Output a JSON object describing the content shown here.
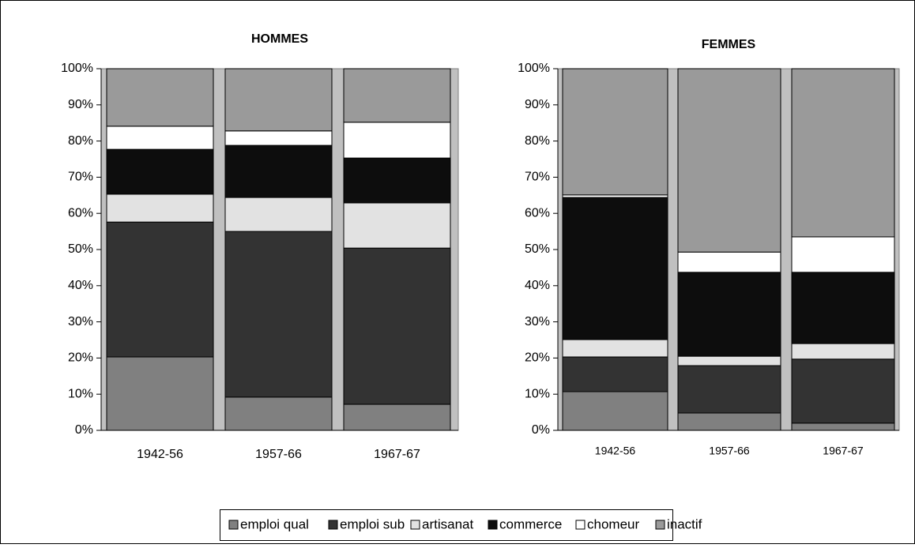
{
  "chart_data": [
    {
      "type": "stacked_bar",
      "title": "HOMMES",
      "categories": [
        "1942-56",
        "1957-66",
        "1967-67"
      ],
      "ylim": [
        0,
        100
      ],
      "yticks": [
        {
          "value": 0,
          "label": "0%"
        },
        {
          "value": 10,
          "label": "10%"
        },
        {
          "value": 20,
          "label": "20%"
        },
        {
          "value": 30,
          "label": "30%"
        },
        {
          "value": 40,
          "label": "40%"
        },
        {
          "value": 50,
          "label": "50%"
        },
        {
          "value": 60,
          "label": "60%"
        },
        {
          "value": 70,
          "label": "70%"
        },
        {
          "value": 80,
          "label": "80%"
        },
        {
          "value": 90,
          "label": "90%"
        },
        {
          "value": 100,
          "label": "100%"
        }
      ],
      "series": [
        {
          "name": "emploi qual",
          "color": "#808080",
          "values": [
            20.3,
            9.2,
            7.2
          ]
        },
        {
          "name": "emploi sub",
          "color": "#333333",
          "values": [
            37.3,
            45.8,
            43.2
          ]
        },
        {
          "name": "artisanat",
          "color": "#e2e2e2",
          "values": [
            7.7,
            9.4,
            12.5
          ]
        },
        {
          "name": "commerce",
          "color": "#0d0d0d",
          "values": [
            12.4,
            14.4,
            12.4
          ]
        },
        {
          "name": "chomeur",
          "color": "#ffffff",
          "values": [
            6.4,
            4.0,
            9.9
          ]
        },
        {
          "name": "inactif",
          "color": "#9a9a9a",
          "values": [
            15.9,
            17.2,
            14.8
          ]
        }
      ]
    },
    {
      "type": "stacked_bar",
      "title": "FEMMES",
      "categories": [
        "1942-56",
        "1957-66",
        "1967-67"
      ],
      "ylim": [
        0,
        100
      ],
      "yticks": [
        {
          "value": 0,
          "label": "0%"
        },
        {
          "value": 10,
          "label": "10%"
        },
        {
          "value": 20,
          "label": "20%"
        },
        {
          "value": 30,
          "label": "30%"
        },
        {
          "value": 40,
          "label": "40%"
        },
        {
          "value": 50,
          "label": "50%"
        },
        {
          "value": 60,
          "label": "60%"
        },
        {
          "value": 70,
          "label": "70%"
        },
        {
          "value": 80,
          "label": "80%"
        },
        {
          "value": 90,
          "label": "90%"
        },
        {
          "value": 100,
          "label": "100%"
        }
      ],
      "series": [
        {
          "name": "emploi qual",
          "color": "#808080",
          "values": [
            10.7,
            4.8,
            2.0
          ]
        },
        {
          "name": "emploi sub",
          "color": "#333333",
          "values": [
            9.6,
            13.1,
            17.7
          ]
        },
        {
          "name": "artisanat",
          "color": "#e2e2e2",
          "values": [
            4.8,
            2.6,
            4.3
          ]
        },
        {
          "name": "commerce",
          "color": "#0d0d0d",
          "values": [
            39.3,
            23.2,
            19.7
          ]
        },
        {
          "name": "chomeur",
          "color": "#ffffff",
          "values": [
            0.7,
            5.6,
            9.8
          ]
        },
        {
          "name": "inactif",
          "color": "#9a9a9a",
          "values": [
            34.9,
            50.7,
            46.5
          ]
        }
      ]
    }
  ]
}
